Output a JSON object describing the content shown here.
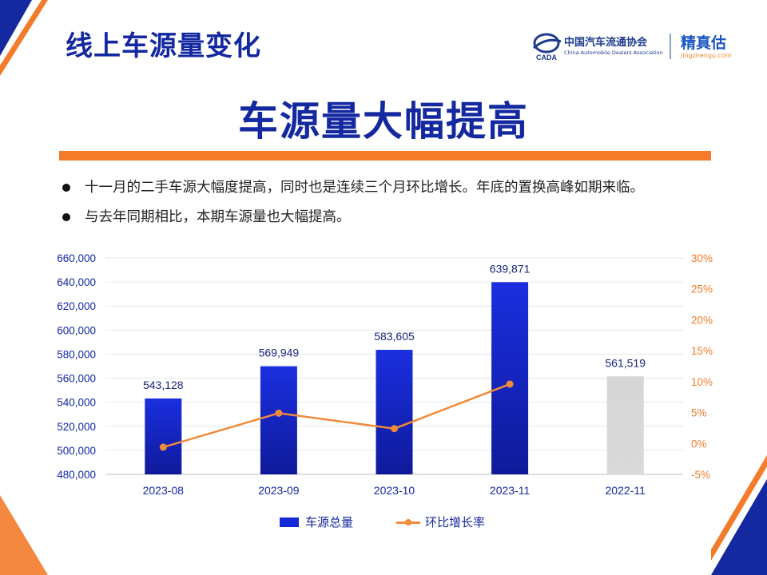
{
  "header": {
    "title": "线上车源量变化",
    "logo_cada_name": "中国汽车流通协会",
    "logo_cada_en": "China Automobile Dealers Association",
    "logo_cada_mark": "CADA",
    "logo_jzg_name": "精真估",
    "logo_jzg_url": "jingzhengu.com"
  },
  "main_title": "车源量大幅提高",
  "bullets": [
    "十一月的二手车源大幅度提高，同时也是连续三个月环比增长。年底的置换高峰如期来临。",
    "与去年同期相比，本期车源量也大幅提高。"
  ],
  "legend": {
    "bar_label": "车源总量",
    "line_label": "环比增长率"
  },
  "colors": {
    "brand_blue": "#1428a0",
    "bar_blue": "#1428d8",
    "bar_gray": "#d9d9d9",
    "accent_orange": "#f47b2a",
    "line_orange": "#f08a3c"
  },
  "chart_data": {
    "type": "bar",
    "categories": [
      "2023-08",
      "2023-09",
      "2023-10",
      "2023-11",
      "2022-11"
    ],
    "series": [
      {
        "name": "车源总量",
        "type": "bar",
        "axis": "left",
        "values": [
          543128,
          569949,
          583605,
          639871,
          561519
        ],
        "value_labels": [
          "543,128",
          "569,949",
          "583,605",
          "639,871",
          "561,519"
        ],
        "colors": [
          "blue",
          "blue",
          "blue",
          "blue",
          "gray"
        ]
      },
      {
        "name": "环比增长率",
        "type": "line",
        "axis": "right",
        "unit": "%",
        "values": [
          -0.6,
          4.9,
          2.4,
          9.6,
          null
        ]
      }
    ],
    "y_left": {
      "min": 480000,
      "max": 660000,
      "step": 20000,
      "tick_labels": [
        "480,000",
        "500,000",
        "520,000",
        "540,000",
        "560,000",
        "580,000",
        "600,000",
        "620,000",
        "640,000",
        "660,000"
      ]
    },
    "y_right": {
      "min": -5,
      "max": 30,
      "step": 5,
      "tick_labels": [
        "-5%",
        "0%",
        "5%",
        "10%",
        "15%",
        "20%",
        "25%",
        "30%"
      ]
    },
    "grid": true,
    "legend_position": "bottom"
  }
}
